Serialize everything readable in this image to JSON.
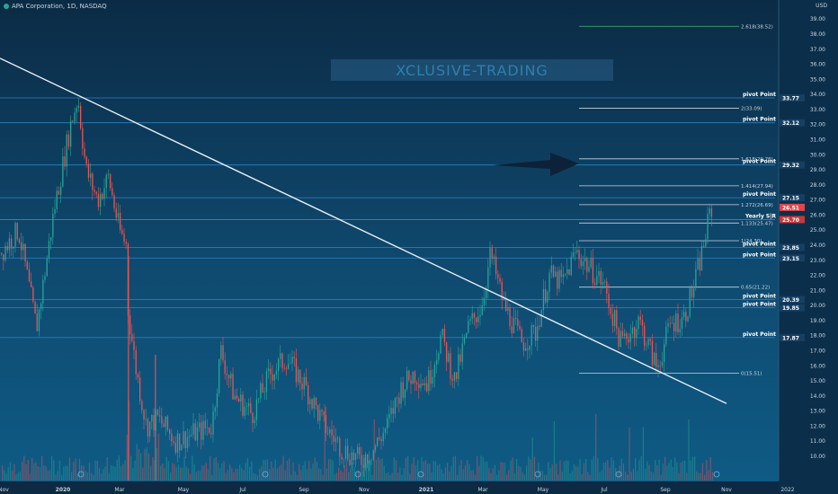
{
  "header": {
    "symbol": "APA Corporation, 1D, NASDAQ",
    "currency": "USD"
  },
  "watermark": "XCLUSIVE-TRADING",
  "chart_data": {
    "type": "candlestick",
    "ylim": [
      9.0,
      40.0
    ],
    "y_ticks": [
      "10.00",
      "11.00",
      "12.00",
      "13.00",
      "14.00",
      "15.00",
      "16.00",
      "17.00",
      "18.00",
      "19.00",
      "20.00",
      "21.00",
      "22.00",
      "23.00",
      "24.00",
      "25.00",
      "26.00",
      "27.00",
      "28.00",
      "29.00",
      "30.00",
      "31.00",
      "32.00",
      "33.00",
      "34.00",
      "35.00",
      "36.00",
      "37.00",
      "38.00",
      "39.00"
    ],
    "x_ticks": [
      "Nov",
      "2020",
      "Mar",
      "May",
      "Jul",
      "Sep",
      "Nov",
      "2021",
      "Mar",
      "May",
      "Jul",
      "Sep",
      "Nov",
      "2022"
    ],
    "price_path": [
      [
        0,
        23.5
      ],
      [
        20,
        25
      ],
      [
        40,
        18.5
      ],
      [
        60,
        26.5
      ],
      [
        78,
        32
      ],
      [
        86,
        33.8
      ],
      [
        95,
        29
      ],
      [
        108,
        27
      ],
      [
        120,
        28.5
      ],
      [
        132,
        25
      ],
      [
        140,
        24
      ],
      [
        140,
        20.5
      ],
      [
        150,
        16
      ],
      [
        162,
        12
      ],
      [
        175,
        12.5
      ],
      [
        195,
        11
      ],
      [
        215,
        11.5
      ],
      [
        235,
        12
      ],
      [
        245,
        17
      ],
      [
        260,
        14
      ],
      [
        280,
        12.8
      ],
      [
        300,
        15.5
      ],
      [
        318,
        16.5
      ],
      [
        340,
        14.5
      ],
      [
        360,
        12
      ],
      [
        380,
        10.5
      ],
      [
        400,
        9.7
      ],
      [
        415,
        10.5
      ],
      [
        430,
        12
      ],
      [
        445,
        14.5
      ],
      [
        460,
        15.5
      ],
      [
        475,
        14.8
      ],
      [
        490,
        18
      ],
      [
        505,
        15
      ],
      [
        520,
        18.5
      ],
      [
        535,
        20
      ],
      [
        545,
        23.4
      ],
      [
        560,
        20
      ],
      [
        580,
        17.5
      ],
      [
        595,
        18.2
      ],
      [
        610,
        22
      ],
      [
        625,
        21.5
      ],
      [
        640,
        23.6
      ],
      [
        655,
        22.5
      ],
      [
        670,
        21.5
      ],
      [
        690,
        17.5
      ],
      [
        710,
        19
      ],
      [
        730,
        15.8
      ],
      [
        745,
        18.8
      ],
      [
        760,
        19.2
      ],
      [
        772,
        21.5
      ],
      [
        780,
        23.5
      ],
      [
        790,
        26.4
      ]
    ],
    "trendline": [
      [
        0,
        36.4
      ],
      [
        808,
        13.5
      ]
    ],
    "horizontal_levels": [
      {
        "value": 33.77,
        "label": "pivot Point",
        "price": "33.77"
      },
      {
        "value": 32.12,
        "label": "pivot Point",
        "price": "32.12"
      },
      {
        "value": 29.32,
        "label": "pivot Point",
        "price": "29.32"
      },
      {
        "value": 27.15,
        "label": "pivot Point",
        "price": "27.15"
      },
      {
        "value": 23.85,
        "label": "pivot Point",
        "price": "23.85"
      },
      {
        "value": 23.15,
        "label": "pivot Point",
        "price": "23.15"
      },
      {
        "value": 20.39,
        "label": "pivot Point",
        "price": "20.39"
      },
      {
        "value": 19.85,
        "label": "pivot Point",
        "price": "19.85"
      },
      {
        "value": 17.87,
        "label": "pivot Point",
        "price": "17.87"
      }
    ],
    "yearly_level": {
      "value": 25.7,
      "label": "Yearly S|R",
      "price": "25.70"
    },
    "last_price": {
      "value": 26.51,
      "label": "26.51"
    },
    "fibonacci": [
      {
        "value": 38.52,
        "label": "2.618(38.52)"
      },
      {
        "value": 33.09,
        "label": "2(33.09)"
      },
      {
        "value": 29.73,
        "label": "1.618(29.73)"
      },
      {
        "value": 27.94,
        "label": "1.414(27.94)"
      },
      {
        "value": 26.69,
        "label": "1.272(26.69)"
      },
      {
        "value": 25.47,
        "label": "1.133(25.47)"
      },
      {
        "value": 24.3,
        "label": "1(24.30)"
      },
      {
        "value": 21.22,
        "label": "0.65(21.22)"
      },
      {
        "value": 15.51,
        "label": "0(15.51)"
      }
    ]
  },
  "colors": {
    "up": "#26a69a",
    "down": "#ef5350",
    "level": "#2f8fd8",
    "fib": "#c9d4de",
    "fib_top": "#3fbf6a",
    "yearly": "#e24b4b",
    "trend": "#e8eef4",
    "arrow": "#0d2238",
    "text": "#c8d6e2"
  }
}
